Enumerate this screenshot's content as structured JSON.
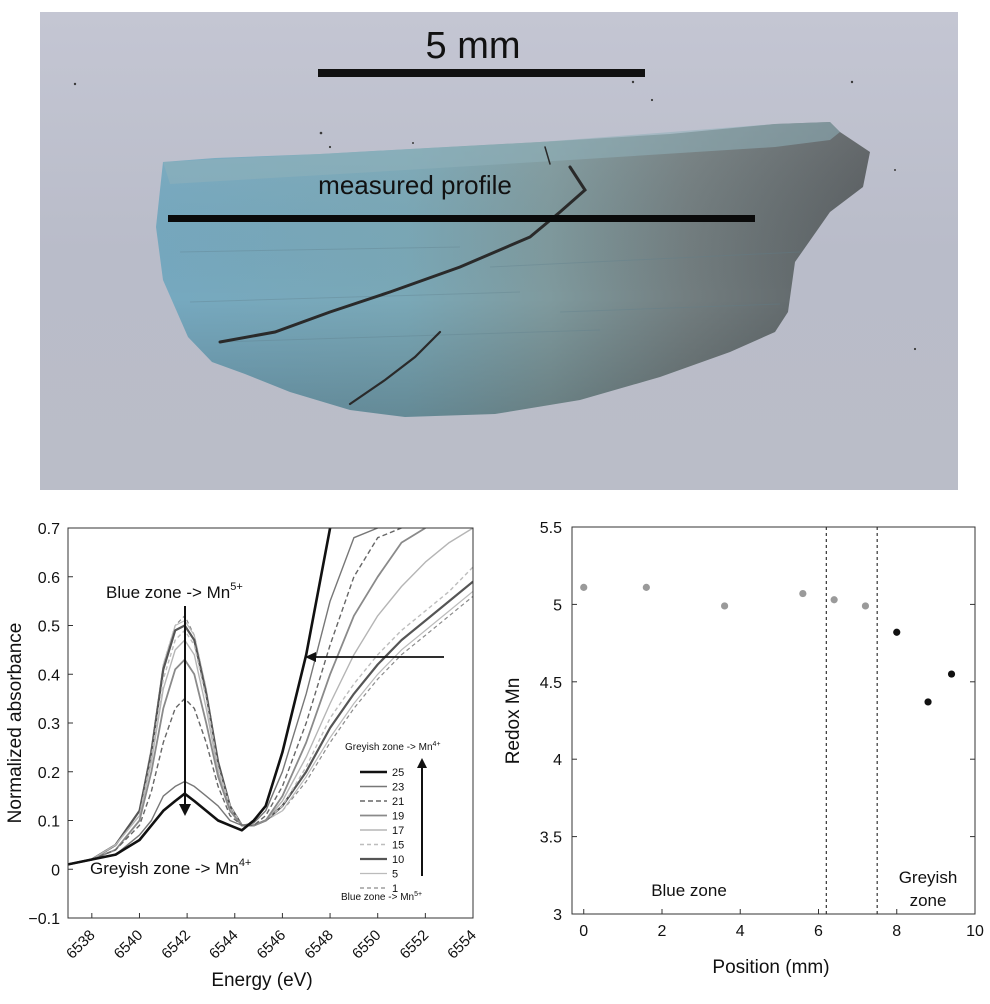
{
  "photo": {
    "scale_label": "5 mm",
    "profile_label": "measured profile"
  },
  "spectra": {
    "chart_data": {
      "type": "line",
      "xlabel": "Energy (eV)",
      "ylabel": "Normalized absorbance",
      "xlim": [
        6537,
        6554
      ],
      "ylim": [
        -0.1,
        0.7
      ],
      "x_ticks": [
        "6538",
        "6540",
        "6542",
        "6544",
        "6546",
        "6548",
        "6550",
        "6552",
        "6554"
      ],
      "y_ticks": [
        "−0.1",
        "0",
        "0.1",
        "0.2",
        "0.3",
        "0.4",
        "0.5",
        "0.6",
        "0.7"
      ],
      "legend": {
        "top_label": "Greyish zone -> Mn",
        "top_sup": "4+",
        "bottom_label": "Blue zone -> Mn",
        "bottom_sup": "5+",
        "entries": [
          "25",
          "23",
          "21",
          "19",
          "17",
          "15",
          "10",
          "5",
          "1"
        ]
      },
      "annotations": {
        "blue_label": "Blue zone -> Mn",
        "blue_sup": "5+",
        "grey_label": "Greyish zone -> Mn",
        "grey_sup": "4+"
      },
      "x": [
        6537,
        6538,
        6539,
        6540,
        6540.5,
        6541,
        6541.5,
        6541.9,
        6542.3,
        6542.8,
        6543.3,
        6543.8,
        6544.3,
        6544.8,
        6545.3,
        6546,
        6547,
        6548,
        6549,
        6550,
        6551,
        6552,
        6553,
        6554
      ],
      "series": [
        {
          "name": "25",
          "values": [
            0.01,
            0.02,
            0.03,
            0.06,
            0.09,
            0.12,
            0.14,
            0.155,
            0.14,
            0.12,
            0.1,
            0.09,
            0.08,
            0.1,
            0.13,
            0.24,
            0.44,
            0.7,
            null,
            null,
            null,
            null,
            null,
            null
          ]
        },
        {
          "name": "23",
          "values": [
            0.01,
            0.02,
            0.03,
            0.07,
            0.1,
            0.15,
            0.17,
            0.18,
            0.17,
            0.15,
            0.13,
            0.1,
            0.09,
            0.095,
            0.12,
            0.2,
            0.36,
            0.55,
            0.68,
            0.7,
            null,
            null,
            null,
            null
          ]
        },
        {
          "name": "21",
          "values": [
            0.01,
            0.02,
            0.04,
            0.09,
            0.16,
            0.26,
            0.33,
            0.35,
            0.33,
            0.26,
            0.17,
            0.11,
            0.09,
            0.09,
            0.11,
            0.17,
            0.3,
            0.46,
            0.6,
            0.68,
            0.7,
            null,
            null,
            null
          ]
        },
        {
          "name": "19",
          "values": [
            0.01,
            0.02,
            0.04,
            0.1,
            0.2,
            0.33,
            0.41,
            0.43,
            0.4,
            0.3,
            0.19,
            0.12,
            0.09,
            0.09,
            0.1,
            0.15,
            0.26,
            0.4,
            0.52,
            0.6,
            0.67,
            0.7,
            null,
            null
          ]
        },
        {
          "name": "17",
          "values": [
            0.01,
            0.02,
            0.05,
            0.11,
            0.22,
            0.37,
            0.45,
            0.47,
            0.44,
            0.33,
            0.2,
            0.12,
            0.09,
            0.09,
            0.1,
            0.14,
            0.23,
            0.34,
            0.44,
            0.52,
            0.58,
            0.63,
            0.67,
            0.7
          ]
        },
        {
          "name": "15",
          "values": [
            0.01,
            0.02,
            0.05,
            0.11,
            0.23,
            0.39,
            0.47,
            0.49,
            0.46,
            0.35,
            0.21,
            0.13,
            0.09,
            0.09,
            0.1,
            0.13,
            0.21,
            0.31,
            0.38,
            0.44,
            0.49,
            0.53,
            0.57,
            0.62
          ]
        },
        {
          "name": "10",
          "values": [
            0.01,
            0.02,
            0.05,
            0.12,
            0.24,
            0.41,
            0.49,
            0.5,
            0.47,
            0.36,
            0.22,
            0.13,
            0.09,
            0.09,
            0.1,
            0.13,
            0.2,
            0.29,
            0.36,
            0.42,
            0.47,
            0.51,
            0.55,
            0.59
          ]
        },
        {
          "name": "5",
          "values": [
            0.01,
            0.02,
            0.05,
            0.12,
            0.25,
            0.42,
            0.5,
            0.51,
            0.48,
            0.37,
            0.22,
            0.13,
            0.09,
            0.09,
            0.1,
            0.12,
            0.19,
            0.27,
            0.34,
            0.4,
            0.45,
            0.49,
            0.53,
            0.57
          ]
        },
        {
          "name": "1",
          "values": [
            0.01,
            0.02,
            0.05,
            0.12,
            0.25,
            0.42,
            0.5,
            0.52,
            0.48,
            0.37,
            0.22,
            0.13,
            0.09,
            0.09,
            0.1,
            0.12,
            0.18,
            0.26,
            0.33,
            0.39,
            0.44,
            0.48,
            0.52,
            0.56
          ]
        }
      ]
    }
  },
  "redox": {
    "chart_data": {
      "type": "scatter",
      "xlabel": "Position (mm)",
      "ylabel": "Redox Mn",
      "xlim": [
        -0.3,
        10
      ],
      "ylim": [
        3,
        5.5
      ],
      "x_ticks": [
        "0",
        "2",
        "4",
        "6",
        "8",
        "10"
      ],
      "y_ticks": [
        "3",
        "3.5",
        "4",
        "4.5",
        "5",
        "5.5"
      ],
      "boundaries": [
        6.2,
        7.5
      ],
      "zone_labels": {
        "blue": "Blue zone",
        "grey_line1": "Greyish",
        "grey_line2": "zone"
      },
      "series": [
        {
          "zone": "blue",
          "color": "#9a9a9a",
          "x": [
            0,
            1.6,
            3.6,
            5.6,
            6.4,
            7.2
          ],
          "y": [
            5.11,
            5.11,
            4.99,
            5.07,
            5.03,
            4.99
          ]
        },
        {
          "zone": "greyish",
          "color": "#111111",
          "x": [
            8.0,
            8.8,
            9.4
          ],
          "y": [
            4.82,
            4.37,
            4.55
          ]
        }
      ]
    }
  }
}
